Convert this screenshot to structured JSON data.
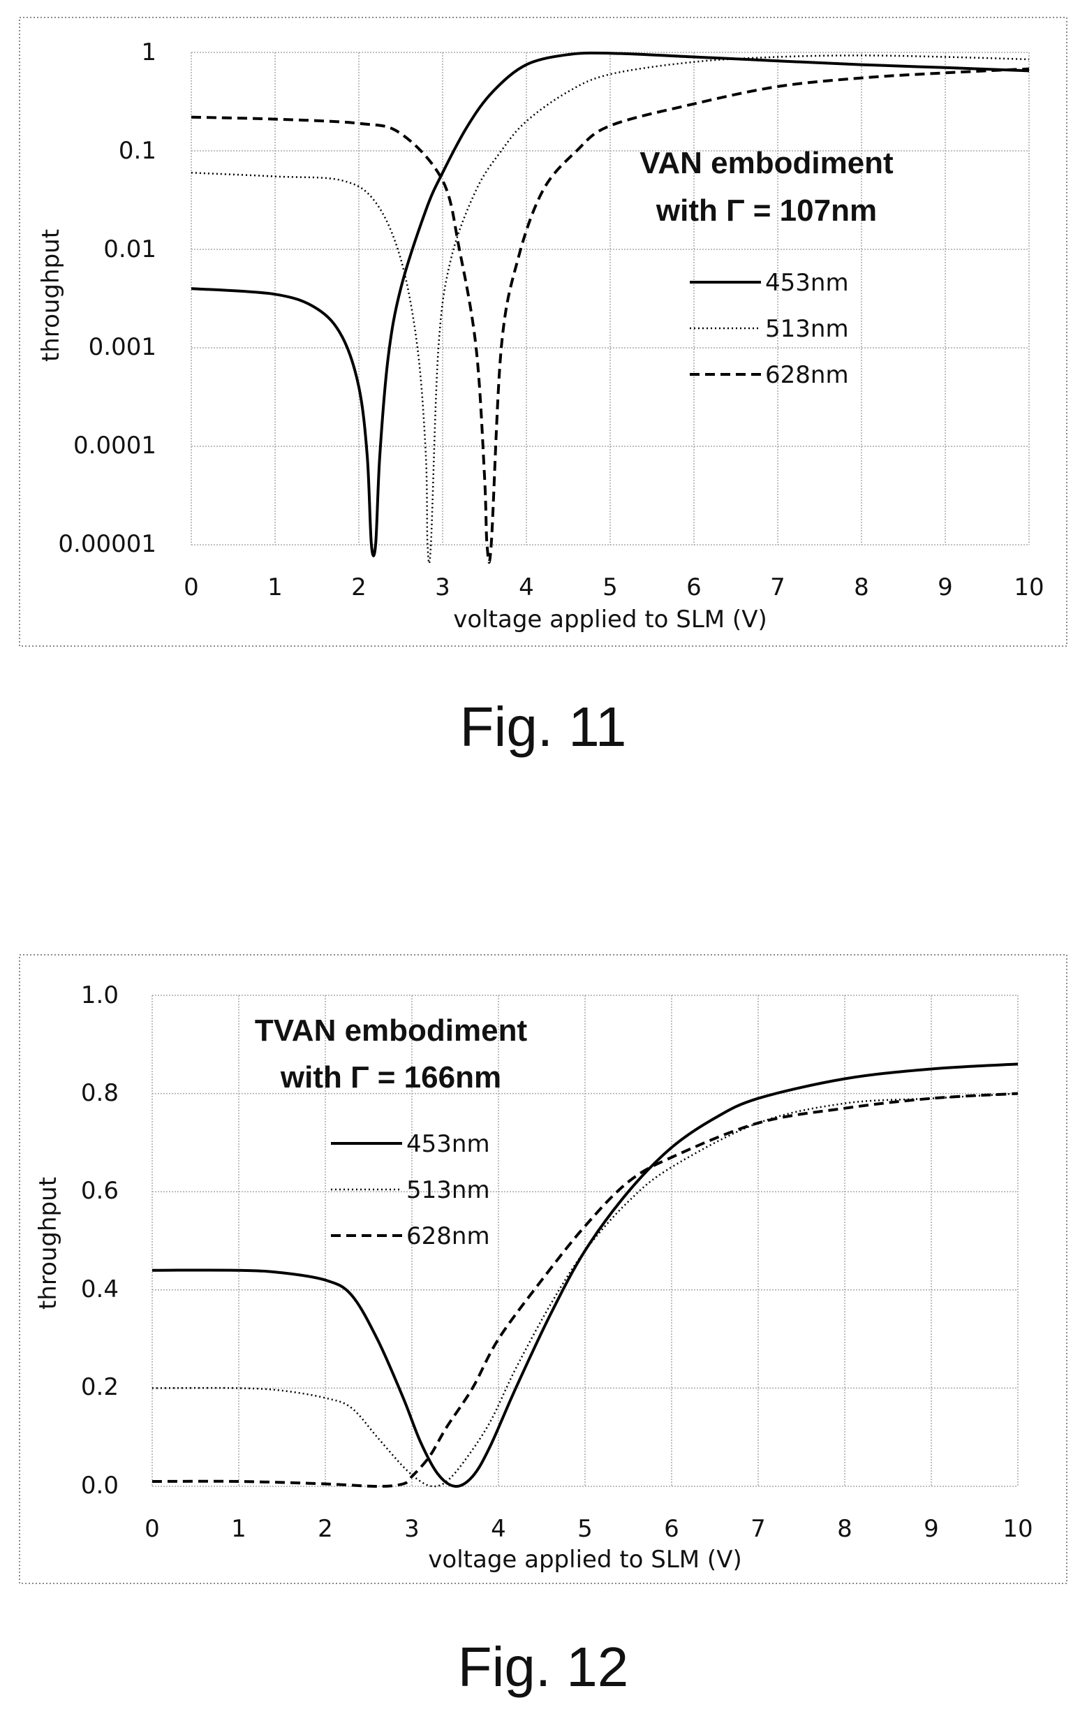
{
  "chart_data": [
    {
      "type": "line",
      "figure_label": "Fig. 11",
      "title_lines": [
        "VAN embodiment",
        "with Γ = 107nm"
      ],
      "xlabel": "voltage applied to SLM (V)",
      "ylabel": "throughput",
      "xlim": [
        0,
        10
      ],
      "ylim": [
        1e-05,
        1
      ],
      "yscale": "log",
      "grid": true,
      "legend_position": "right",
      "x_ticks": [
        "0",
        "1",
        "2",
        "3",
        "4",
        "5",
        "6",
        "7",
        "8",
        "9",
        "10"
      ],
      "y_ticks": [
        {
          "value": 1,
          "label": "1"
        },
        {
          "value": 0.1,
          "label": "0.1"
        },
        {
          "value": 0.01,
          "label": "0.01"
        },
        {
          "value": 0.001,
          "label": "0.001"
        },
        {
          "value": 0.0001,
          "label": "0.0001"
        },
        {
          "value": 1e-05,
          "label": "0.00001"
        }
      ],
      "series": [
        {
          "name": "453nm",
          "style": "solid",
          "x": [
            0,
            1,
            1.5,
            1.8,
            2.0,
            2.1,
            2.15,
            2.2,
            2.25,
            2.35,
            2.5,
            2.8,
            3.0,
            3.3,
            3.6,
            4.0,
            4.5,
            5.0,
            6.0,
            7.0,
            8.0,
            9.0,
            10.0
          ],
          "y": [
            0.004,
            0.0035,
            0.0025,
            0.0013,
            0.0004,
            8e-05,
            1e-05,
            1e-05,
            8e-05,
            0.0008,
            0.004,
            0.025,
            0.06,
            0.18,
            0.4,
            0.75,
            0.95,
            0.98,
            0.9,
            0.82,
            0.75,
            0.7,
            0.65
          ]
        },
        {
          "name": "513nm",
          "style": "dotted",
          "x": [
            0,
            1,
            1.8,
            2.2,
            2.5,
            2.7,
            2.8,
            2.82,
            2.86,
            2.95,
            3.1,
            3.4,
            3.7,
            4.0,
            4.5,
            5.0,
            6.0,
            7.0,
            8.0,
            9.0,
            10.0
          ],
          "y": [
            0.06,
            0.055,
            0.05,
            0.03,
            0.008,
            0.001,
            8e-05,
            1e-05,
            1e-05,
            0.001,
            0.008,
            0.04,
            0.1,
            0.2,
            0.4,
            0.6,
            0.8,
            0.9,
            0.93,
            0.9,
            0.85
          ]
        },
        {
          "name": "628nm",
          "style": "dashed",
          "x": [
            0,
            1,
            2,
            2.5,
            3.0,
            3.2,
            3.4,
            3.5,
            3.53,
            3.58,
            3.7,
            3.9,
            4.2,
            4.6,
            5.0,
            6.0,
            7.0,
            8.0,
            9.0,
            10.0
          ],
          "y": [
            0.22,
            0.21,
            0.19,
            0.15,
            0.05,
            0.01,
            0.001,
            5e-05,
            1e-05,
            1e-05,
            0.001,
            0.008,
            0.04,
            0.1,
            0.18,
            0.3,
            0.45,
            0.55,
            0.62,
            0.68
          ]
        }
      ]
    },
    {
      "type": "line",
      "figure_label": "Fig. 12",
      "title_lines": [
        "TVAN embodiment",
        "with Γ = 166nm"
      ],
      "xlabel": "voltage applied to SLM (V)",
      "ylabel": "throughput",
      "xlim": [
        0,
        10
      ],
      "ylim": [
        0,
        1
      ],
      "yscale": "linear",
      "grid": true,
      "legend_position": "top-left",
      "x_ticks": [
        "0",
        "1",
        "2",
        "3",
        "4",
        "5",
        "6",
        "7",
        "8",
        "9",
        "10"
      ],
      "y_ticks": [
        {
          "value": 1.0,
          "label": "1.0"
        },
        {
          "value": 0.8,
          "label": "0.8"
        },
        {
          "value": 0.6,
          "label": "0.6"
        },
        {
          "value": 0.4,
          "label": "0.4"
        },
        {
          "value": 0.2,
          "label": "0.2"
        },
        {
          "value": 0.0,
          "label": "0.0"
        }
      ],
      "series": [
        {
          "name": "453nm",
          "style": "solid",
          "x": [
            0,
            1,
            1.5,
            2.0,
            2.3,
            2.6,
            2.9,
            3.1,
            3.3,
            3.5,
            3.7,
            3.9,
            4.2,
            4.6,
            5.0,
            5.5,
            6.0,
            6.5,
            7.0,
            8.0,
            9.0,
            10.0
          ],
          "y": [
            0.44,
            0.44,
            0.435,
            0.42,
            0.39,
            0.3,
            0.18,
            0.09,
            0.025,
            0.0,
            0.02,
            0.08,
            0.2,
            0.35,
            0.48,
            0.6,
            0.69,
            0.75,
            0.79,
            0.83,
            0.85,
            0.86
          ]
        },
        {
          "name": "513nm",
          "style": "dotted",
          "x": [
            0,
            1,
            1.5,
            2.0,
            2.3,
            2.6,
            2.9,
            3.1,
            3.25,
            3.4,
            3.6,
            3.9,
            4.2,
            4.6,
            5.0,
            5.5,
            6.0,
            7.0,
            8.0,
            9.0,
            10.0
          ],
          "y": [
            0.2,
            0.2,
            0.195,
            0.18,
            0.16,
            0.1,
            0.04,
            0.01,
            0.0,
            0.01,
            0.05,
            0.13,
            0.24,
            0.37,
            0.48,
            0.58,
            0.65,
            0.74,
            0.78,
            0.79,
            0.8
          ]
        },
        {
          "name": "628nm",
          "style": "dashed",
          "x": [
            0,
            1,
            2.0,
            2.6,
            2.9,
            3.0,
            3.2,
            3.4,
            3.7,
            4.0,
            4.5,
            5.0,
            5.5,
            6.0,
            7.0,
            8.0,
            9.0,
            10.0
          ],
          "y": [
            0.01,
            0.01,
            0.005,
            0.0,
            0.005,
            0.02,
            0.06,
            0.12,
            0.2,
            0.3,
            0.42,
            0.53,
            0.62,
            0.67,
            0.74,
            0.77,
            0.79,
            0.8
          ]
        }
      ]
    }
  ]
}
